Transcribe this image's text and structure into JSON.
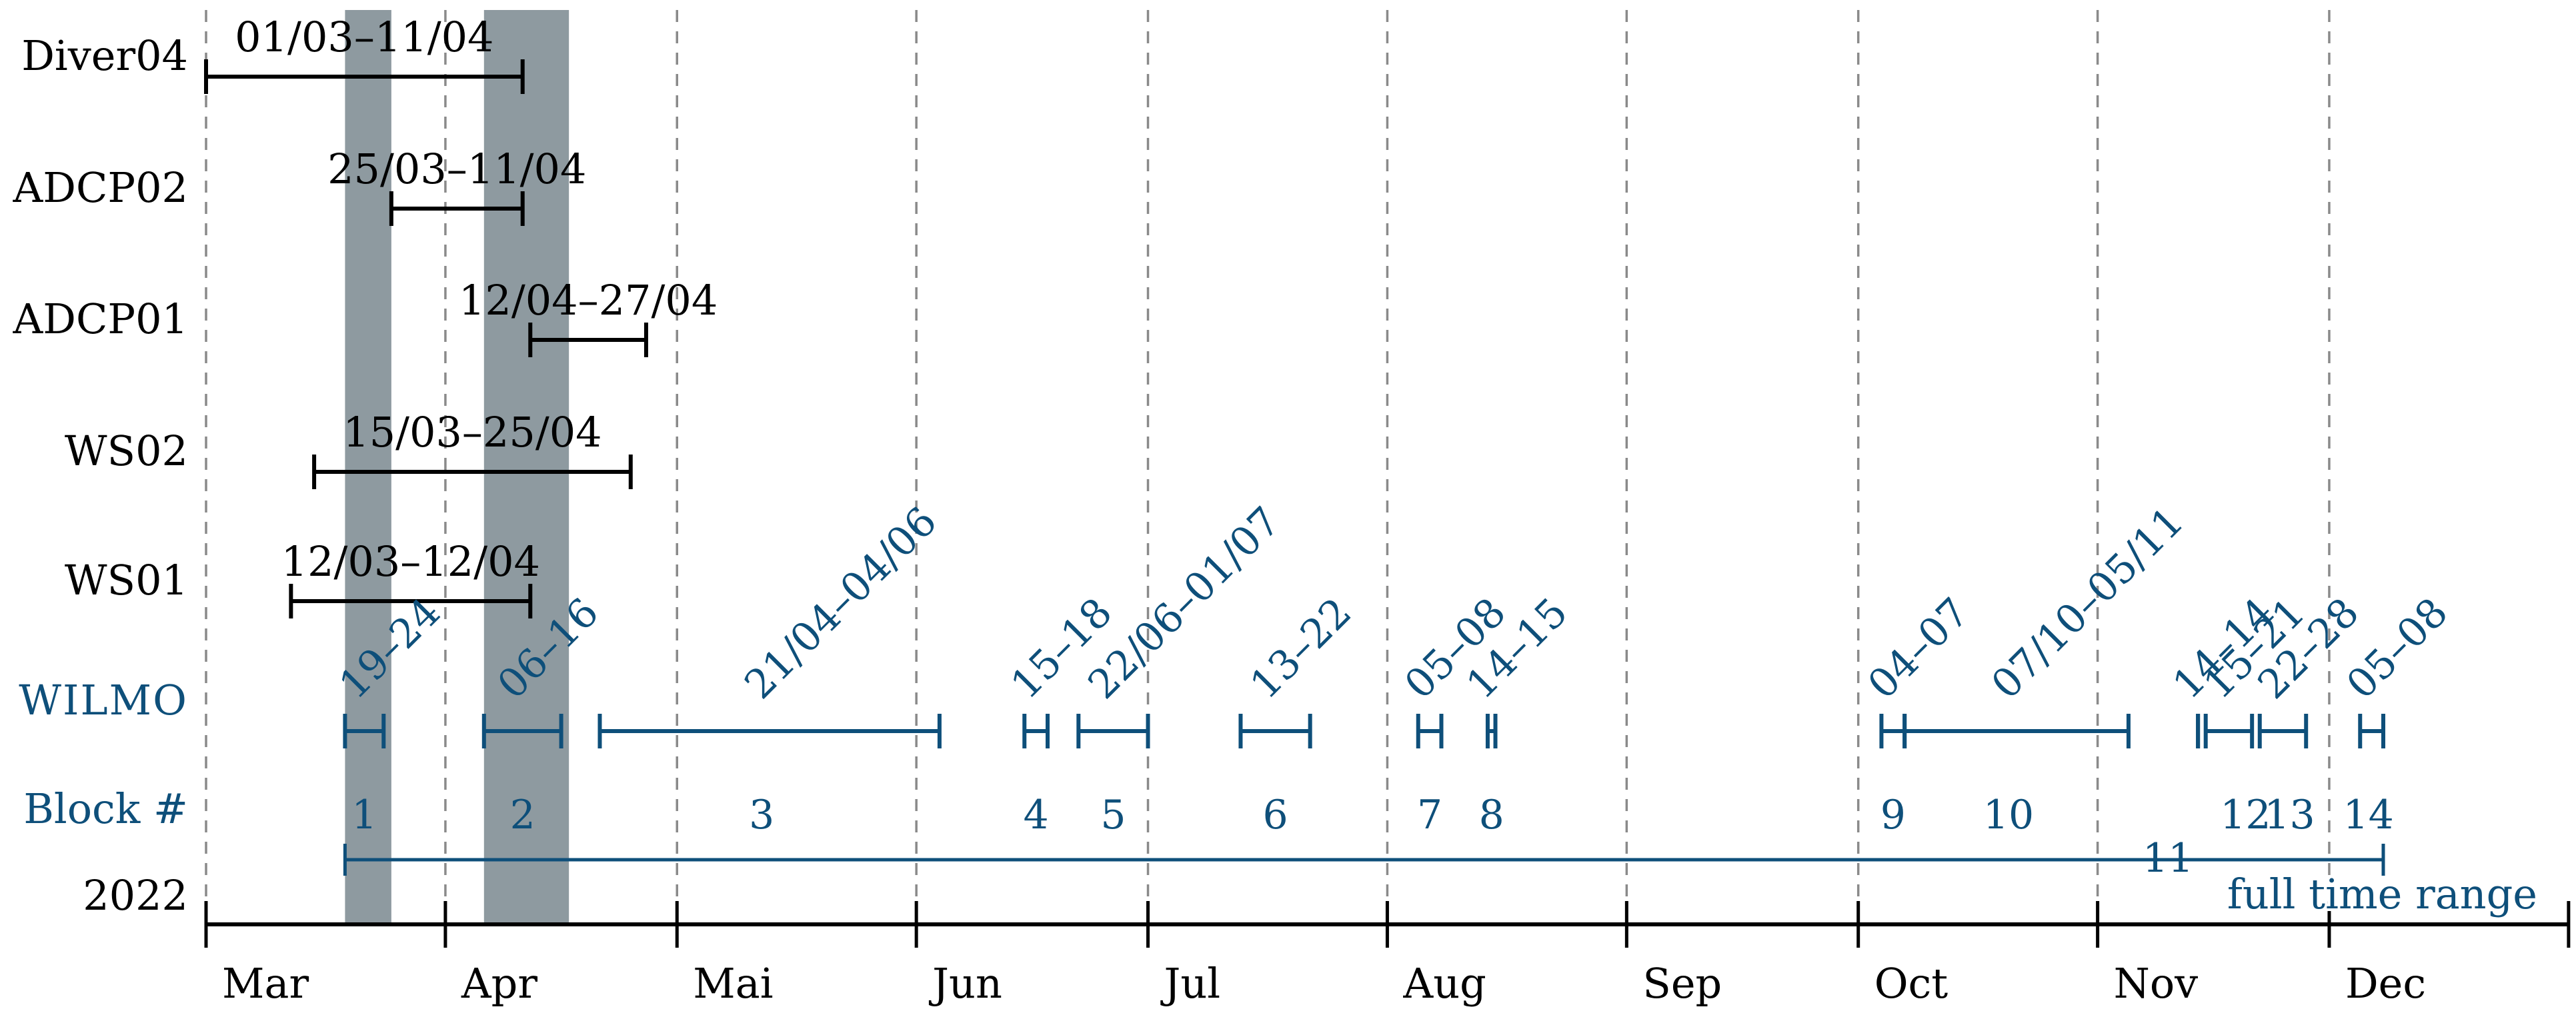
{
  "chart_data": {
    "type": "timeline",
    "title": "",
    "year_label": "2022",
    "x_axis": {
      "start": "2022-03-01",
      "end": "2022-12-31",
      "ticks": [
        "Mar",
        "Apr",
        "Mai",
        "Jun",
        "Jul",
        "Aug",
        "Sep",
        "Oct",
        "Nov",
        "Dec"
      ],
      "tick_dates": [
        "2022-03-01",
        "2022-04-01",
        "2022-05-01",
        "2022-06-01",
        "2022-07-01",
        "2022-08-01",
        "2022-09-01",
        "2022-10-01",
        "2022-11-01",
        "2022-12-01"
      ],
      "grid": "dashed vertical at month starts"
    },
    "shaded_ranges": [
      {
        "start": "2022-03-19",
        "end": "2022-03-24"
      },
      {
        "start": "2022-04-06",
        "end": "2022-04-16"
      }
    ],
    "instrument_rows": [
      {
        "name": "Diver04",
        "start": "2022-03-01",
        "end": "2022-04-11",
        "label": "01/03–11/04"
      },
      {
        "name": "ADCP02",
        "start": "2022-03-25",
        "end": "2022-04-11",
        "label": "25/03–11/04"
      },
      {
        "name": "ADCP01",
        "start": "2022-04-12",
        "end": "2022-04-27",
        "label": "12/04–27/04"
      },
      {
        "name": "WS02",
        "start": "2022-03-15",
        "end": "2022-04-25",
        "label": "15/03–25/04"
      },
      {
        "name": "WS01",
        "start": "2022-03-12",
        "end": "2022-04-12",
        "label": "12/03–12/04"
      }
    ],
    "wilmo_row": {
      "name": "WILMO",
      "color": "#0e4f7a",
      "blocks_label": "Block #",
      "segments": [
        {
          "block": "1",
          "start": "2022-03-19",
          "end": "2022-03-24",
          "label": "19–24"
        },
        {
          "block": "2",
          "start": "2022-04-06",
          "end": "2022-04-16",
          "label": "06–16"
        },
        {
          "block": "3",
          "start": "2022-04-21",
          "end": "2022-06-04",
          "label": "21/04–04/06"
        },
        {
          "block": "4",
          "start": "2022-06-15",
          "end": "2022-06-18",
          "label": "15–18"
        },
        {
          "block": "5",
          "start": "2022-06-22",
          "end": "2022-07-01",
          "label": "22/06–01/07"
        },
        {
          "block": "6",
          "start": "2022-07-13",
          "end": "2022-07-22",
          "label": "13–22"
        },
        {
          "block": "7",
          "start": "2022-08-05",
          "end": "2022-08-08",
          "label": "05–08"
        },
        {
          "block": "8",
          "start": "2022-08-14",
          "end": "2022-08-15",
          "label": "14–15"
        },
        {
          "block": "9",
          "start": "2022-10-04",
          "end": "2022-10-07",
          "label": "04–07"
        },
        {
          "block": "10",
          "start": "2022-10-07",
          "end": "2022-11-05",
          "label": "07/10–05/11"
        },
        {
          "block": "11",
          "start": "2022-11-14",
          "end": "2022-11-14",
          "label": "14–14"
        },
        {
          "block": "12",
          "start": "2022-11-15",
          "end": "2022-11-21",
          "label": "15–21"
        },
        {
          "block": "13",
          "start": "2022-11-22",
          "end": "2022-11-28",
          "label": "22–28"
        },
        {
          "block": "14",
          "start": "2022-12-05",
          "end": "2022-12-08",
          "label": "05–08"
        }
      ]
    },
    "full_range": {
      "start": "2022-03-19",
      "end": "2022-12-08",
      "label": "full time range"
    }
  }
}
